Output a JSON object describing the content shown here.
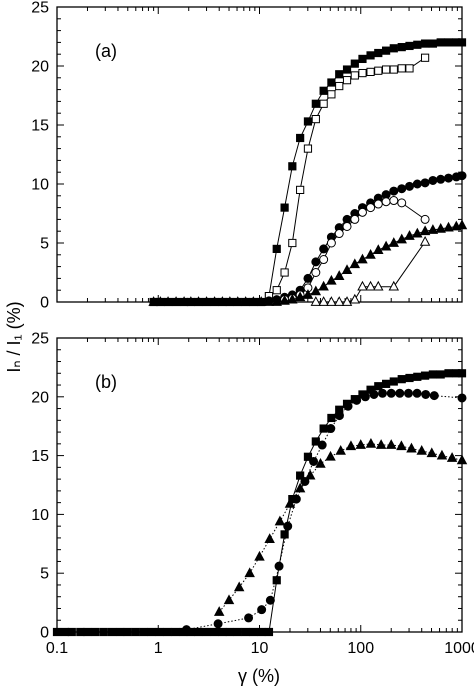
{
  "chart_data": [
    {
      "type": "scatter",
      "panel_label": "(a)",
      "x_scale": "log",
      "xlim": [
        0.1,
        1000
      ],
      "ylim": [
        0,
        25
      ],
      "y_ticks": [
        0,
        5,
        10,
        15,
        20,
        25
      ],
      "x_ticks": [
        0.1,
        1,
        10,
        100,
        1000
      ],
      "x_tick_labels_shown": false,
      "grid": false,
      "series": [
        {
          "marker": "square",
          "filled": true,
          "line": "solid",
          "color": "#000000",
          "x": [
            0.9,
            1.05,
            1.25,
            1.5,
            1.8,
            2.1,
            2.5,
            3.0,
            3.6,
            4.3,
            5.1,
            6.1,
            7.3,
            8.7,
            10.4,
            12.4,
            14.8,
            17.7,
            21.1,
            25.2,
            30.1,
            36.0,
            43.0,
            51.3,
            61.3,
            73.2,
            87.4,
            104,
            125,
            149,
            178,
            212,
            254,
            303,
            362,
            432,
            516,
            616,
            736,
            879,
            1000
          ],
          "y": [
            0,
            0,
            0,
            0,
            0,
            0,
            0,
            0,
            0,
            0,
            0,
            0,
            0,
            0,
            0,
            0.5,
            4.5,
            8.0,
            11.5,
            13.9,
            15.3,
            16.8,
            17.9,
            18.6,
            19.3,
            19.7,
            20.2,
            20.6,
            20.9,
            21.1,
            21.3,
            21.5,
            21.6,
            21.7,
            21.8,
            21.9,
            21.9,
            22.0,
            22.0,
            22.0,
            22.0
          ]
        },
        {
          "marker": "square",
          "filled": false,
          "line": "solid",
          "color": "#000000",
          "x": [
            12.4,
            14.8,
            17.7,
            21.1,
            25.2,
            30.1,
            36.0,
            43.0,
            51.3,
            61.3,
            73.2,
            87.4,
            104,
            125,
            149,
            178,
            212,
            254,
            303,
            432
          ],
          "y": [
            0.5,
            1.0,
            2.5,
            5.0,
            9.5,
            13.0,
            15.5,
            16.8,
            17.6,
            18.3,
            18.8,
            19.2,
            19.4,
            19.5,
            19.6,
            19.7,
            19.7,
            19.8,
            19.8,
            20.7
          ]
        },
        {
          "marker": "circle",
          "filled": true,
          "line": "solid",
          "color": "#000000",
          "x": [
            12.4,
            14.8,
            17.7,
            21.1,
            25.2,
            30.1,
            36.0,
            43.0,
            51.3,
            61.3,
            73.2,
            87.4,
            104,
            125,
            149,
            178,
            212,
            254,
            303,
            362,
            432,
            516,
            616,
            736,
            879,
            1000
          ],
          "y": [
            0.1,
            0.2,
            0.4,
            0.6,
            1.0,
            2.0,
            3.4,
            4.5,
            5.5,
            6.3,
            7.0,
            7.5,
            8.0,
            8.4,
            8.8,
            9.1,
            9.4,
            9.6,
            9.8,
            10.0,
            10.1,
            10.3,
            10.4,
            10.5,
            10.6,
            10.7
          ]
        },
        {
          "marker": "circle",
          "filled": false,
          "line": "solid",
          "color": "#000000",
          "x": [
            17.7,
            21.1,
            25.2,
            30.1,
            36.0,
            43.0,
            51.3,
            61.3,
            73.2,
            87.4,
            104,
            125,
            149,
            178,
            212,
            254,
            432
          ],
          "y": [
            0.2,
            0.3,
            0.6,
            1.2,
            2.5,
            3.6,
            5.0,
            5.8,
            6.4,
            7.0,
            7.6,
            8.0,
            8.3,
            8.5,
            8.6,
            8.4,
            7.0
          ]
        },
        {
          "marker": "triangle",
          "filled": true,
          "line": "solid",
          "color": "#000000",
          "x": [
            12.4,
            14.8,
            17.7,
            21.1,
            25.2,
            30.1,
            36.0,
            43.0,
            51.3,
            61.3,
            73.2,
            87.4,
            104,
            125,
            149,
            178,
            212,
            254,
            303,
            362,
            432,
            516,
            616,
            736,
            879,
            1000
          ],
          "y": [
            0,
            0,
            0.1,
            0.2,
            0.4,
            0.6,
            0.9,
            1.3,
            1.8,
            2.2,
            2.7,
            3.2,
            3.6,
            4.0,
            4.4,
            4.7,
            5.0,
            5.3,
            5.6,
            5.8,
            6.0,
            6.1,
            6.2,
            6.3,
            6.4,
            6.5
          ]
        },
        {
          "marker": "triangle",
          "filled": false,
          "line": "solid",
          "color": "#000000",
          "x": [
            36.0,
            43.0,
            51.3,
            61.3,
            73.2,
            87.4,
            104,
            125,
            149,
            212,
            432
          ],
          "y": [
            0,
            0,
            0,
            0,
            0,
            0.2,
            1.3,
            1.3,
            1.3,
            1.3,
            5.1
          ]
        },
        {
          "marker": "triangle",
          "filled": true,
          "line": "none",
          "color": "#000000",
          "x": [
            0.9,
            1.05,
            1.25,
            1.5,
            1.8,
            2.1,
            2.5,
            3.0,
            3.6,
            4.3,
            5.1,
            6.1,
            7.3,
            8.7,
            10.4
          ],
          "y": [
            0,
            0,
            0,
            0,
            0,
            0,
            0,
            0,
            0,
            0,
            0,
            0,
            0,
            0,
            0
          ]
        }
      ]
    },
    {
      "type": "scatter",
      "panel_label": "(b)",
      "x_scale": "log",
      "xlim": [
        0.1,
        1000
      ],
      "ylim": [
        0,
        25
      ],
      "y_ticks": [
        0,
        5,
        10,
        15,
        20,
        25
      ],
      "x_ticks": [
        0.1,
        1,
        10,
        100,
        1000
      ],
      "x_tick_labels": [
        "0.1",
        "1",
        "10",
        "100",
        "1000"
      ],
      "xlabel": "γ (%)",
      "grid": false,
      "series": [
        {
          "marker": "square",
          "filled": true,
          "line": "solid",
          "color": "#000000",
          "x": [
            0.1,
            0.12,
            0.14,
            0.17,
            0.2,
            0.24,
            0.29,
            0.35,
            0.42,
            0.5,
            0.6,
            0.72,
            0.86,
            1.03,
            1.23,
            1.47,
            1.76,
            2.1,
            2.5,
            3.0,
            3.6,
            4.3,
            5.1,
            6.1,
            7.3,
            8.7,
            10.4,
            12.4,
            14.8,
            17.7,
            21.1,
            25.2,
            30.1,
            36.0,
            43.0,
            51.3,
            61.3,
            73.2,
            87.4,
            104,
            125,
            149,
            178,
            212,
            254,
            303,
            362,
            432,
            516,
            616,
            736,
            879,
            1000
          ],
          "y": [
            0,
            0,
            0,
            0,
            0,
            0,
            0,
            0,
            0,
            0,
            0,
            0,
            0,
            0,
            0,
            0,
            0,
            0,
            0,
            0,
            0,
            0,
            0,
            0,
            0,
            0,
            0,
            0,
            4.4,
            8.3,
            11.3,
            13.3,
            14.9,
            16.2,
            17.3,
            18.2,
            18.9,
            19.4,
            19.8,
            20.2,
            20.6,
            20.9,
            21.1,
            21.3,
            21.5,
            21.6,
            21.7,
            21.8,
            21.9,
            21.9,
            22.0,
            22.0,
            22.0
          ]
        },
        {
          "marker": "circle",
          "filled": true,
          "line": "dotted",
          "color": "#000000",
          "x": [
            1.9,
            3.9,
            7.8,
            10.5,
            12.8,
            15.6,
            19.0,
            23.1,
            28.1,
            34.2,
            41.6,
            50.6,
            61.6,
            74.9,
            91.1,
            111,
            135,
            164,
            200,
            243,
            296,
            360,
            438,
            532,
            1000
          ],
          "y": [
            0.2,
            0.7,
            1.2,
            1.9,
            2.7,
            5.6,
            9.0,
            11.3,
            12.8,
            14.5,
            15.9,
            17.3,
            18.4,
            19.2,
            19.7,
            20.0,
            20.2,
            20.3,
            20.3,
            20.3,
            20.3,
            20.3,
            20.2,
            20.1,
            19.9
          ]
        },
        {
          "marker": "triangle",
          "filled": true,
          "line": "dotted",
          "color": "#000000",
          "x": [
            4.0,
            5.0,
            6.3,
            8.0,
            10.0,
            12.6,
            15.9,
            20.0,
            25.2,
            31.7,
            40.0,
            50.3,
            63.4,
            80.0,
            100,
            126,
            159,
            200,
            252,
            317,
            400,
            503,
            634,
            798,
            1000
          ],
          "y": [
            1.7,
            2.7,
            3.8,
            5.0,
            6.4,
            7.9,
            9.4,
            10.9,
            12.2,
            13.3,
            14.3,
            14.9,
            15.4,
            15.8,
            15.9,
            16.0,
            15.9,
            15.9,
            15.8,
            15.6,
            15.4,
            15.2,
            15.0,
            14.8,
            14.6
          ]
        }
      ]
    }
  ],
  "shared_ylabel": "Iₙ / I₁ (%)"
}
